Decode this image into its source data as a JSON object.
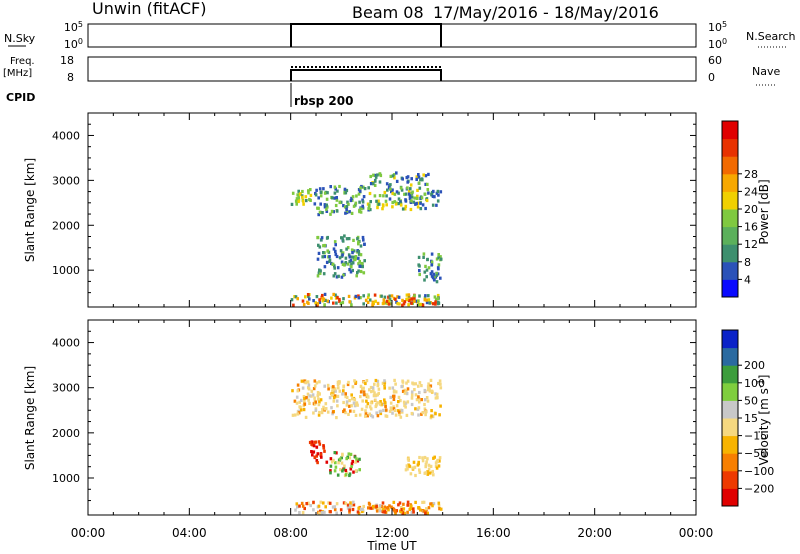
{
  "header": {
    "station": "Unwin (fitACF)",
    "beam": "Beam 08",
    "date_range": "17/May/2016 - 18/May/2016"
  },
  "sky_panel": {
    "label": "N.Sky",
    "left_ticks": [
      "10^5",
      "10^0"
    ],
    "right_ticks": [
      "10^5",
      "10^0"
    ],
    "right_label": "N.Search"
  },
  "freq_panel": {
    "label_line1": "Freq.",
    "label_line2": "[MHz]",
    "left_ticks": [
      "18",
      "8"
    ],
    "right_ticks": [
      "60",
      "0"
    ],
    "right_label": "Nave"
  },
  "cpid": {
    "label": "CPID",
    "program": "rbsp 200"
  },
  "x_axis": {
    "label": "Time UT",
    "ticks": [
      "00:00",
      "04:00",
      "08:00",
      "12:00",
      "16:00",
      "20:00",
      "00:00"
    ]
  },
  "chart_data": [
    {
      "type": "heatmap",
      "name": "power",
      "ylabel": "Slant Range [km]",
      "xlabel": "Time UT",
      "xlim": [
        0,
        24
      ],
      "ylim": [
        180,
        4500
      ],
      "yticks": [
        1000,
        2000,
        3000,
        4000
      ],
      "colorbar": {
        "label": "Power [dB]",
        "ticks": [
          "4",
          "8",
          "12",
          "16",
          "20",
          "24",
          "28"
        ],
        "colors": [
          "#0a0aff",
          "#2b52b8",
          "#3d8f6e",
          "#5bb05b",
          "#7fc940",
          "#f0d000",
          "#f7a800",
          "#f26a00",
          "#e83200",
          "#e00000"
        ]
      },
      "regions": [
        {
          "t0": 8.0,
          "t1": 8.9,
          "r0": 2400,
          "r1": 2850,
          "values": [
            8,
            12,
            16
          ]
        },
        {
          "t0": 8.9,
          "t1": 11.0,
          "r0": 2200,
          "r1": 2900,
          "values": [
            4,
            8,
            12
          ]
        },
        {
          "t0": 11.0,
          "t1": 13.5,
          "r0": 2300,
          "r1": 3200,
          "values": [
            4,
            8,
            12,
            16
          ]
        },
        {
          "t0": 13.5,
          "t1": 14.0,
          "r0": 2400,
          "r1": 2800,
          "values": [
            4,
            8
          ]
        },
        {
          "t0": 9.0,
          "t1": 11.0,
          "r0": 800,
          "r1": 1800,
          "values": [
            4,
            8,
            12
          ]
        },
        {
          "t0": 13.0,
          "t1": 14.0,
          "r0": 700,
          "r1": 1400,
          "values": [
            4,
            8,
            12
          ]
        },
        {
          "t0": 8.0,
          "t1": 14.0,
          "r0": 180,
          "r1": 500,
          "values": [
            4,
            8,
            12,
            16,
            20,
            24
          ]
        },
        {
          "t0": 11.0,
          "t1": 13.0,
          "r0": 180,
          "r1": 400,
          "values": [
            16,
            20,
            24
          ]
        }
      ]
    },
    {
      "type": "heatmap",
      "name": "velocity",
      "ylabel": "Slant Range [km]",
      "xlabel": "Time UT",
      "xlim": [
        0,
        24
      ],
      "ylim": [
        180,
        4500
      ],
      "yticks": [
        1000,
        2000,
        3000,
        4000
      ],
      "colorbar": {
        "label": "Velocity [m s^-1]",
        "ticks": [
          "-200",
          "-100",
          "-50",
          "-15",
          "15",
          "50",
          "100",
          "200"
        ],
        "colors": [
          "#e00000",
          "#ee3a00",
          "#f77f00",
          "#f7b300",
          "#f5d880",
          "#c8c8c8",
          "#7fce3e",
          "#3c9d3c",
          "#2a6aa0",
          "#0a22c8"
        ]
      },
      "regions": [
        {
          "t0": 8.0,
          "t1": 14.0,
          "r0": 2300,
          "r1": 3200,
          "values": [
            0,
            0,
            0,
            -15,
            -50,
            15,
            50
          ]
        },
        {
          "t0": 8.7,
          "t1": 9.5,
          "r0": 1300,
          "r1": 1850,
          "values": [
            -200,
            -150
          ]
        },
        {
          "t0": 9.5,
          "t1": 10.8,
          "r0": 1000,
          "r1": 1600,
          "values": [
            -200,
            0,
            100,
            200
          ]
        },
        {
          "t0": 12.5,
          "t1": 14.0,
          "r0": 1000,
          "r1": 1500,
          "values": [
            0,
            0,
            -15
          ]
        },
        {
          "t0": 8.0,
          "t1": 14.0,
          "r0": 180,
          "r1": 500,
          "values": [
            15,
            50,
            -15,
            -50,
            -100
          ]
        },
        {
          "t0": 11.0,
          "t1": 13.0,
          "r0": 200,
          "r1": 420,
          "values": [
            -50,
            -100,
            -15
          ]
        }
      ]
    }
  ]
}
